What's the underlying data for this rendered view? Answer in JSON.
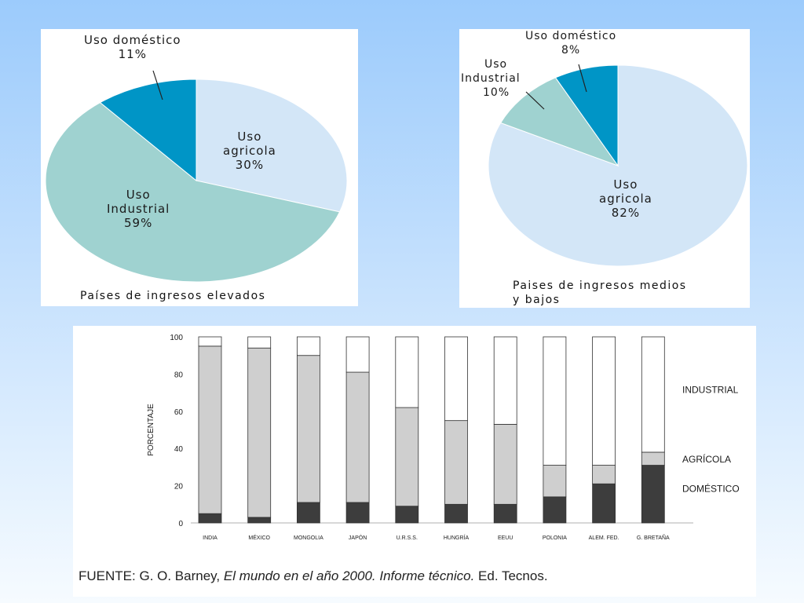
{
  "chart_data": [
    {
      "type": "pie",
      "caption": "Países de ingresos elevados",
      "slices": [
        {
          "label_line1": "Uso",
          "label_line2": "agricola",
          "value": 30,
          "value_label": "30%",
          "color": "#d3e6f7"
        },
        {
          "label_line1": "Uso",
          "label_line2": "Industrial",
          "value": 59,
          "value_label": "59%",
          "color": "#9fd2d0"
        },
        {
          "label_line1": "Uso doméstico",
          "label_line2": "",
          "value": 11,
          "value_label": "11%",
          "color": "#0095c6"
        }
      ]
    },
    {
      "type": "pie",
      "caption_line1": "Paises de ingresos medios",
      "caption_line2": "y bajos",
      "slices": [
        {
          "label_line1": "Uso",
          "label_line2": "agricola",
          "value": 82,
          "value_label": "82%",
          "color": "#d3e6f7"
        },
        {
          "label_line1": "Uso",
          "label_line2": "Industrial",
          "value": 10,
          "value_label": "10%",
          "color": "#9fd2d0"
        },
        {
          "label_line1": "Uso doméstico",
          "label_line2": "",
          "value": 8,
          "value_label": "8%",
          "color": "#0095c6"
        }
      ]
    },
    {
      "type": "bar",
      "stacked": true,
      "ylabel": "PORCENTAJE",
      "ylim": [
        0,
        100
      ],
      "yticks": [
        "0",
        "20",
        "40",
        "60",
        "80",
        "100"
      ],
      "categories": [
        "INDIA",
        "MÉXICO",
        "MONGOLIA",
        "JAPÓN",
        "U.R.S.S.",
        "HUNGRÍA",
        "EEUU",
        "POLONIA",
        "ALEM. FED.",
        "G. BRETAÑA"
      ],
      "series": [
        {
          "name": "DOMÉSTICO",
          "color": "#3d3d3d",
          "values": [
            5,
            3,
            11,
            11,
            9,
            10,
            10,
            14,
            21,
            31
          ]
        },
        {
          "name": "AGRÍCOLA",
          "color": "#cfcfcf",
          "values": [
            90,
            91,
            79,
            70,
            53,
            45,
            43,
            17,
            10,
            7
          ]
        },
        {
          "name": "INDUSTRIAL",
          "color": "#ffffff",
          "values": [
            5,
            6,
            10,
            19,
            38,
            45,
            47,
            69,
            69,
            62
          ]
        }
      ],
      "legend": "right",
      "source_label": "FUENTE:",
      "source_author": "G. O. Barney,",
      "source_title": "El mundo en el año 2000. Informe técnico.",
      "source_publisher": "Ed. Tecnos."
    }
  ]
}
